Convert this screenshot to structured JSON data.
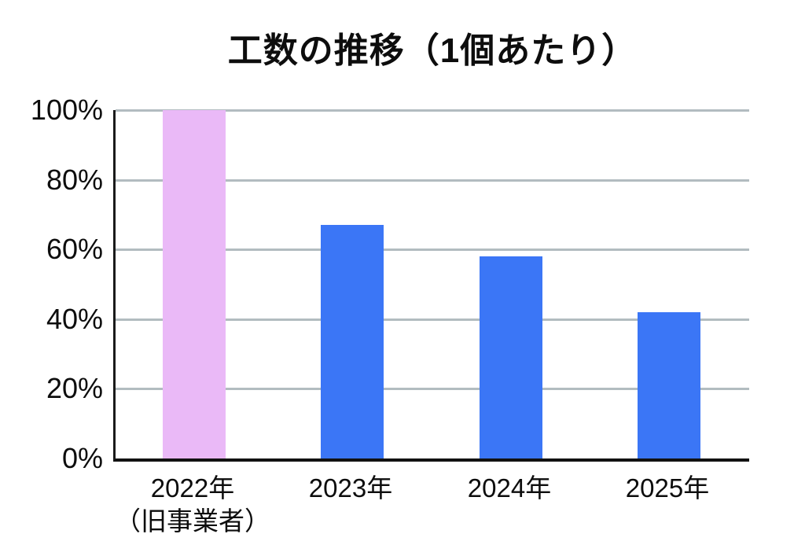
{
  "title": "工数の推移（1個あたり）",
  "chart_data": {
    "type": "bar",
    "title": "工数の推移（1個あたり）",
    "categories": [
      {
        "label": "2022年",
        "sublabel": "（旧事業者）"
      },
      {
        "label": "2023年",
        "sublabel": ""
      },
      {
        "label": "2024年",
        "sublabel": ""
      },
      {
        "label": "2025年",
        "sublabel": ""
      }
    ],
    "values": [
      100,
      67,
      58,
      42
    ],
    "unit": "%",
    "bar_colors": [
      "#eab9f7",
      "#3b76f6",
      "#3b76f6",
      "#3b76f6"
    ],
    "xlabel": "",
    "ylabel": "",
    "ylim": [
      0,
      100
    ],
    "ytick_labels": [
      "100%",
      "80%",
      "60%",
      "40%",
      "20%",
      "0%"
    ],
    "ytick_values": [
      100,
      80,
      60,
      40,
      20,
      0
    ],
    "grid": true,
    "legend": false
  },
  "colors": {
    "bar_highlight": "#eab9f7",
    "bar_default": "#3b76f6",
    "gridline": "#b2bcc0",
    "axis": "#111111",
    "text": "#0d0d0d",
    "background": "#ffffff"
  }
}
